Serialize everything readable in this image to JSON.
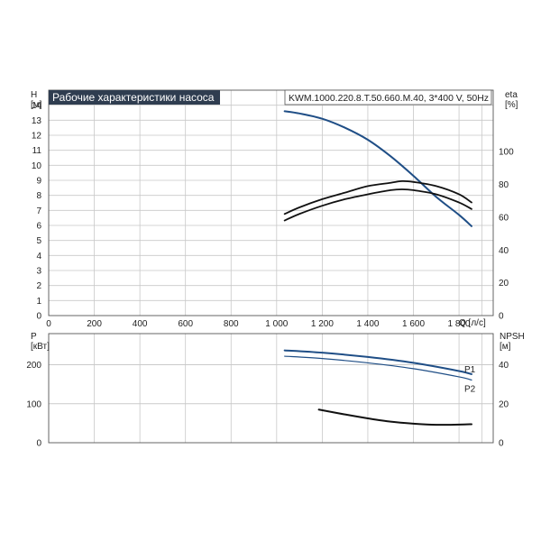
{
  "title_box": "Рабочие характеристики насоса",
  "model_box": "KWM.1000.220.8.T.50.660.M.40, 3*400 V, 50Hz",
  "colors": {
    "title_bg": "#2f3d50",
    "title_fg": "#ffffff",
    "curve_blue": "#1f4e86",
    "curve_black": "#111111",
    "grid": "#c8c8c8"
  },
  "chart_data": [
    {
      "type": "line",
      "title": "Рабочие характеристики насоса",
      "xlabel": "Q [л/с]",
      "ylabel": "H [м]",
      "y2label": "eta [%]",
      "xlim": [
        0,
        1950
      ],
      "ylim": [
        0,
        15
      ],
      "y2lim": [
        0,
        100
      ],
      "x_ticks": [
        "0",
        "200",
        "400",
        "600",
        "800",
        "1 000",
        "1 200",
        "1 400",
        "1 600",
        "1 800"
      ],
      "x_tick_values": [
        0,
        200,
        400,
        600,
        800,
        1000,
        1200,
        1400,
        1600,
        1800
      ],
      "y_ticks": [
        0,
        1,
        2,
        3,
        4,
        5,
        6,
        7,
        8,
        9,
        10,
        11,
        12,
        13,
        14
      ],
      "y2_ticks": [
        0,
        20,
        40,
        60,
        80,
        100
      ],
      "grid": true,
      "series": [
        {
          "axis": "left",
          "x": [
            1035,
            1100,
            1200,
            1300,
            1400,
            1500,
            1600,
            1700,
            1800,
            1855
          ],
          "y": [
            13.6,
            13.45,
            13.1,
            12.5,
            11.7,
            10.6,
            9.3,
            7.9,
            6.7,
            5.95
          ]
        },
        {
          "axis": "right",
          "x": [
            1035,
            1100,
            1200,
            1300,
            1400,
            1500,
            1550,
            1600,
            1700,
            1800,
            1855
          ],
          "y": [
            62,
            66,
            71,
            75,
            79,
            81,
            82,
            81.5,
            79,
            74,
            69
          ]
        },
        {
          "axis": "right",
          "x": [
            1035,
            1100,
            1200,
            1300,
            1400,
            1500,
            1550,
            1600,
            1700,
            1800,
            1855
          ],
          "y": [
            58,
            62,
            67,
            71,
            74,
            76.5,
            77,
            76.5,
            74,
            69,
            65
          ]
        }
      ]
    },
    {
      "type": "line",
      "xlabel": "Q [л/с]",
      "ylabel": "P [кВт]",
      "y2label": "NPSH [м]",
      "xlim": [
        0,
        1950
      ],
      "ylim": [
        0,
        280
      ],
      "y2lim": [
        0,
        56
      ],
      "y_ticks": [
        0,
        100,
        200
      ],
      "y2_ticks": [
        0,
        20,
        40
      ],
      "grid": true,
      "series": [
        {
          "name": "P1",
          "axis": "left",
          "x": [
            1035,
            1200,
            1400,
            1600,
            1800,
            1855
          ],
          "y": [
            237,
            231,
            220,
            205,
            184,
            176
          ]
        },
        {
          "name": "P2",
          "axis": "left",
          "x": [
            1035,
            1200,
            1400,
            1600,
            1800,
            1855
          ],
          "y": [
            222,
            216,
            205,
            190,
            169,
            161
          ]
        },
        {
          "axis": "right",
          "x": [
            1185,
            1300,
            1400,
            1500,
            1600,
            1700,
            1800,
            1855
          ],
          "y": [
            17,
            14.5,
            12.5,
            10.8,
            9.8,
            9.2,
            9.3,
            9.5
          ]
        }
      ]
    }
  ]
}
